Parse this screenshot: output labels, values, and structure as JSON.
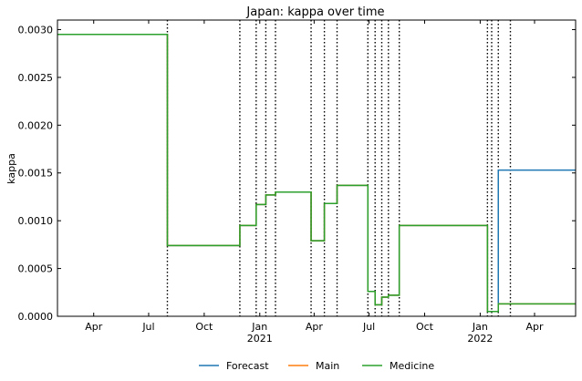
{
  "chart_data": {
    "type": "line",
    "title": "Japan: kappa over time",
    "xlabel": "",
    "ylabel": "kappa",
    "xlim": [
      "2020-02-01",
      "2022-06-08"
    ],
    "ylim": [
      0,
      0.0031
    ],
    "x_ticks": [
      {
        "date": "2020-04-01",
        "label": "Apr"
      },
      {
        "date": "2020-07-01",
        "label": "Jul"
      },
      {
        "date": "2020-10-01",
        "label": "Oct"
      },
      {
        "date": "2021-01-01",
        "label": "Jan",
        "sublabel": "2021"
      },
      {
        "date": "2021-04-01",
        "label": "Apr"
      },
      {
        "date": "2021-07-01",
        "label": "Jul"
      },
      {
        "date": "2021-10-01",
        "label": "Oct"
      },
      {
        "date": "2022-01-01",
        "label": "Jan",
        "sublabel": "2022"
      },
      {
        "date": "2022-04-01",
        "label": "Apr"
      }
    ],
    "y_ticks": [
      0,
      0.0005,
      0.001,
      0.0015,
      0.002,
      0.0025,
      0.003
    ],
    "y_tick_labels": [
      "0.0000",
      "0.0005",
      "0.0010",
      "0.0015",
      "0.0020",
      "0.0025",
      "0.0030"
    ],
    "change_points": [
      "2020-08-01",
      "2020-11-29",
      "2020-12-26",
      "2021-01-11",
      "2021-01-27",
      "2021-03-27",
      "2021-04-18",
      "2021-05-09",
      "2021-06-29",
      "2021-07-11",
      "2021-07-22",
      "2021-08-02",
      "2021-08-20",
      "2022-01-13",
      "2022-01-20",
      "2022-01-31",
      "2022-02-20"
    ],
    "series": [
      {
        "name": "Forecast",
        "color": "#1f77b4",
        "x": [
          "2020-02-01",
          "2020-08-01",
          "2020-11-29",
          "2020-12-26",
          "2021-01-11",
          "2021-01-27",
          "2021-03-27",
          "2021-04-18",
          "2021-05-09",
          "2021-06-29",
          "2021-07-11",
          "2021-07-22",
          "2021-08-02",
          "2021-08-20",
          "2022-01-13",
          "2022-01-20",
          "2022-01-31",
          "2022-06-08"
        ],
        "values": [
          0.00295,
          0.00074,
          0.00095,
          0.00117,
          0.00127,
          0.0013,
          0.00079,
          0.00118,
          0.00137,
          0.00026,
          0.00012,
          0.0002,
          0.00022,
          0.00095,
          5e-05,
          5e-05,
          0.00153,
          0.00153
        ]
      },
      {
        "name": "Main",
        "color": "#ff7f0e",
        "x": [
          "2020-02-01",
          "2020-08-01",
          "2020-11-29",
          "2020-12-26",
          "2021-01-11",
          "2021-01-27",
          "2021-03-27",
          "2021-04-18",
          "2021-05-09",
          "2021-06-29",
          "2021-07-11",
          "2021-07-22",
          "2021-08-02",
          "2021-08-20",
          "2022-01-13",
          "2022-01-20",
          "2022-01-31",
          "2022-06-08"
        ],
        "values": [
          0.00295,
          0.00074,
          0.00095,
          0.00117,
          0.00127,
          0.0013,
          0.00079,
          0.00118,
          0.00137,
          0.00026,
          0.00012,
          0.0002,
          0.00022,
          0.00095,
          5e-05,
          5e-05,
          0.00013,
          0.00013
        ]
      },
      {
        "name": "Medicine",
        "color": "#2ca02c",
        "x": [
          "2020-02-01",
          "2020-08-01",
          "2020-11-29",
          "2020-12-26",
          "2021-01-11",
          "2021-01-27",
          "2021-03-27",
          "2021-04-18",
          "2021-05-09",
          "2021-06-29",
          "2021-07-11",
          "2021-07-22",
          "2021-08-02",
          "2021-08-20",
          "2022-01-13",
          "2022-01-20",
          "2022-01-31",
          "2022-06-08"
        ],
        "values": [
          0.00295,
          0.00074,
          0.00095,
          0.00117,
          0.00127,
          0.0013,
          0.00079,
          0.00118,
          0.00137,
          0.00026,
          0.00012,
          0.0002,
          0.00022,
          0.00095,
          5e-05,
          5e-05,
          0.00013,
          0.00013
        ]
      }
    ],
    "legend_position": "bottom-center",
    "grid": false
  }
}
